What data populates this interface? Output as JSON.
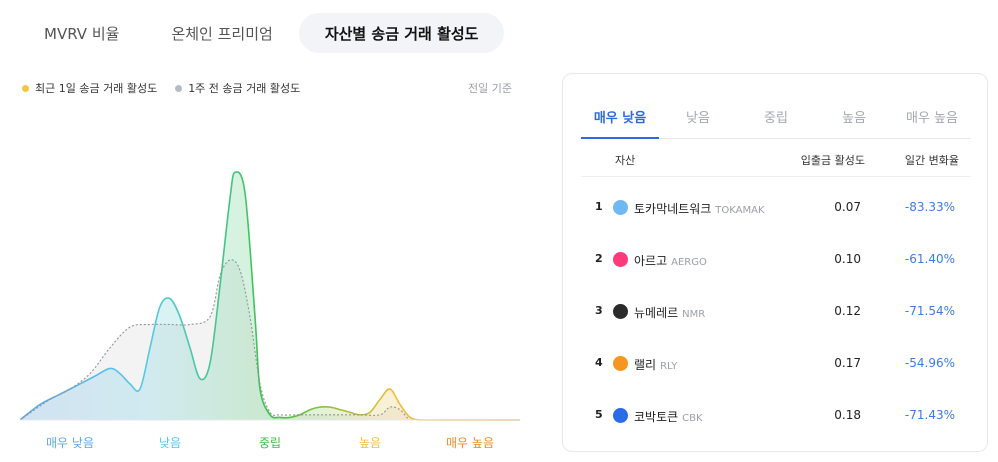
{
  "tabs": [
    {
      "label": "MVRV 비율",
      "active": false
    },
    {
      "label": "온체인 프리미엄",
      "active": false
    },
    {
      "label": "자산별 송금 거래 활성도",
      "active": true
    }
  ],
  "legend": {
    "current": {
      "label": "최근 1일 송금 거래 활성도",
      "color": "#f5c542"
    },
    "previous": {
      "label": "1주 전 송금 거래 활성도",
      "color": "#b6bac2"
    }
  },
  "basis_label": "전일 기준",
  "chart_data": {
    "type": "area",
    "title": "",
    "xlabel": "",
    "ylabel": "",
    "categories": [
      "매우 낮음",
      "낮음",
      "중립",
      "높음",
      "매우 높음"
    ],
    "category_colors": [
      "#5aa8e6",
      "#56c9e6",
      "#3cc24a",
      "#f0bf3a",
      "#f08a24"
    ],
    "x_range": [
      0,
      100
    ],
    "ylim": [
      0,
      100
    ],
    "series": [
      {
        "x": [
          0,
          4,
          8,
          12,
          15,
          18,
          20,
          22,
          24,
          26,
          28,
          30,
          32,
          34,
          36,
          38,
          40,
          42,
          43,
          45,
          47,
          48,
          50,
          52,
          54,
          56,
          58,
          60,
          62,
          64,
          66,
          68,
          70,
          72,
          74,
          76,
          78,
          80,
          82,
          84,
          86,
          88,
          90,
          92,
          94,
          96,
          100
        ],
        "y": [
          0,
          6,
          10,
          14,
          17,
          20,
          18,
          14,
          12,
          28,
          44,
          47,
          40,
          28,
          16,
          22,
          52,
          86,
          96,
          88,
          40,
          12,
          2,
          1,
          1,
          2,
          4,
          5,
          5,
          4,
          3,
          2,
          3,
          8,
          12,
          6,
          1,
          0,
          0,
          0,
          0,
          0,
          0,
          0,
          0,
          0,
          0
        ]
      },
      {
        "x": [
          0,
          6,
          10,
          14,
          18,
          22,
          26,
          30,
          34,
          38,
          40,
          42,
          44,
          46,
          48,
          50,
          52,
          56,
          60,
          64,
          68,
          72,
          74,
          76,
          78,
          80,
          100
        ],
        "y": [
          0,
          8,
          12,
          18,
          28,
          36,
          37,
          37,
          37,
          40,
          56,
          62,
          58,
          40,
          14,
          3,
          2,
          2,
          2,
          2,
          2,
          2,
          5,
          4,
          0,
          0,
          0
        ]
      }
    ]
  },
  "panel_tabs": [
    {
      "label": "매우 낮음",
      "active": true
    },
    {
      "label": "낮음",
      "active": false
    },
    {
      "label": "중립",
      "active": false
    },
    {
      "label": "높음",
      "active": false
    },
    {
      "label": "매우 높음",
      "active": false
    }
  ],
  "table": {
    "headers": [
      "자산",
      "입출금 활성도",
      "일간 변화율"
    ],
    "rows": [
      {
        "rank": "1",
        "name": "토카막네트워크",
        "ticker": "TOKAMAK",
        "activity": "0.07",
        "change": "-83.33%",
        "icon_name": "tokamak-icon",
        "icon_color": "#6fb8f2"
      },
      {
        "rank": "2",
        "name": "아르고",
        "ticker": "AERGO",
        "activity": "0.10",
        "change": "-61.40%",
        "icon_name": "aergo-icon",
        "icon_color": "#ff3a7a"
      },
      {
        "rank": "3",
        "name": "뉴메레르",
        "ticker": "NMR",
        "activity": "0.12",
        "change": "-71.54%",
        "icon_name": "numeraire-icon",
        "icon_color": "#2b2b2b"
      },
      {
        "rank": "4",
        "name": "랠리",
        "ticker": "RLY",
        "activity": "0.17",
        "change": "-54.96%",
        "icon_name": "rally-icon",
        "icon_color": "#f7961e"
      },
      {
        "rank": "5",
        "name": "코박토큰",
        "ticker": "CBK",
        "activity": "0.18",
        "change": "-71.43%",
        "icon_name": "cobak-icon",
        "icon_color": "#2a6be8"
      }
    ]
  }
}
